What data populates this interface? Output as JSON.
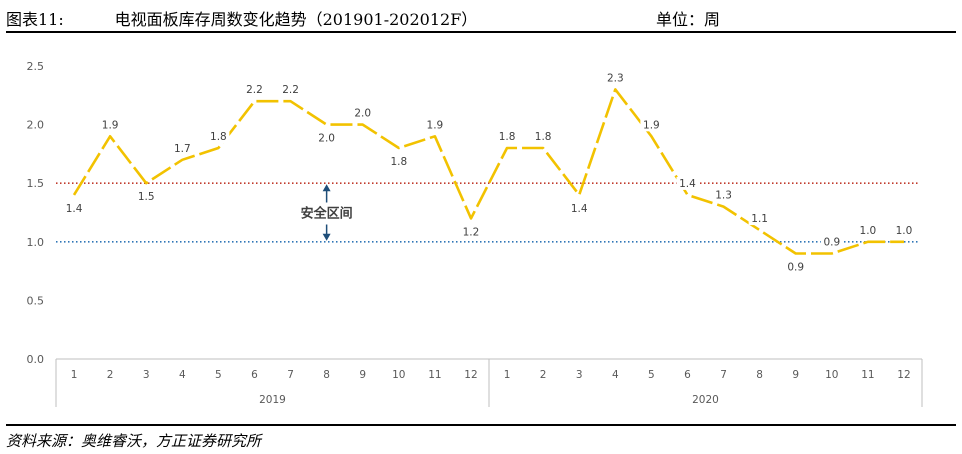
{
  "header": {
    "figure_label": "图表11:",
    "title": "电视面板库存周数变化趋势（201901-202012F）",
    "unit": "单位：周"
  },
  "footer": {
    "source": "资料来源：奥维睿沃，方正证券研究所"
  },
  "chart_data": {
    "type": "line",
    "title": "电视面板库存周数变化趋势（201901-202012F）",
    "unit": "周",
    "ylim": [
      0,
      2.5
    ],
    "yticks": [
      "0.0",
      "0.5",
      "1.0",
      "1.5",
      "2.0",
      "2.5"
    ],
    "years": [
      "2019",
      "2020"
    ],
    "months": [
      "1",
      "2",
      "3",
      "4",
      "5",
      "6",
      "7",
      "8",
      "9",
      "10",
      "11",
      "12"
    ],
    "series": [
      {
        "color": "#F2C200",
        "style": "dashed",
        "values": [
          1.4,
          1.9,
          1.5,
          1.7,
          1.8,
          2.2,
          2.2,
          2.0,
          2.0,
          1.8,
          1.9,
          1.2,
          1.8,
          1.8,
          1.4,
          2.3,
          1.9,
          1.4,
          1.3,
          1.1,
          0.9,
          0.9,
          1.0,
          1.0
        ],
        "labels": [
          "1.4",
          "1.9",
          "1.5",
          "1.7",
          "1.8",
          "2.2",
          "2.2",
          "2.0",
          "2.0",
          "1.8",
          "1.9",
          "1.2",
          "1.8",
          "1.8",
          "1.4",
          "2.3",
          "1.9",
          "1.4",
          "1.3",
          "1.1",
          "0.9",
          "0.9",
          "1.0",
          "1.0"
        ]
      }
    ],
    "reference_lines": [
      {
        "value": 1.5,
        "color": "#C0392B",
        "style": "dotted"
      },
      {
        "value": 1.0,
        "color": "#2E75B6",
        "style": "dotted"
      }
    ],
    "annotation": {
      "text": "安全区间",
      "between": [
        1.0,
        1.5
      ],
      "color": "#1F4E79"
    },
    "grid": false
  }
}
